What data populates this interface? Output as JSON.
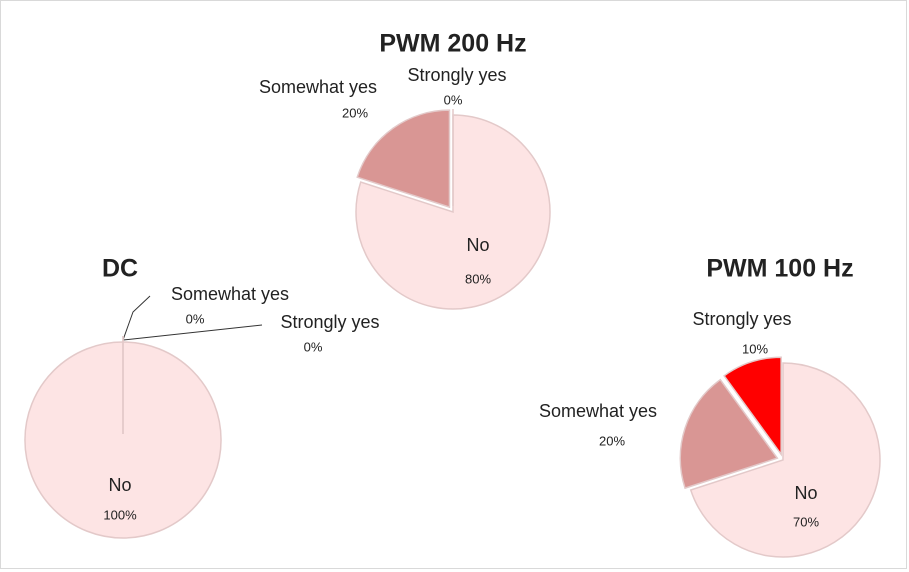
{
  "chart_data": [
    {
      "type": "pie",
      "title": "PWM 200 Hz",
      "categories": [
        "No",
        "Somewhat yes",
        "Strongly yes"
      ],
      "values": [
        80,
        20,
        0
      ],
      "value_labels": [
        "80%",
        "20%",
        "0%"
      ],
      "colors": [
        "#fde4e4",
        "#d99694",
        "#ff0000"
      ]
    },
    {
      "type": "pie",
      "title": "DC",
      "categories": [
        "No",
        "Somewhat yes",
        "Strongly yes"
      ],
      "values": [
        100,
        0,
        0
      ],
      "value_labels": [
        "100%",
        "0%",
        "0%"
      ],
      "colors": [
        "#fde4e4",
        "#d99694",
        "#ff0000"
      ]
    },
    {
      "type": "pie",
      "title": "PWM 100 Hz",
      "categories": [
        "No",
        "Somewhat yes",
        "Strongly yes"
      ],
      "values": [
        70,
        20,
        10
      ],
      "value_labels": [
        "70%",
        "20%",
        "10%"
      ],
      "colors": [
        "#fde4e4",
        "#d99694",
        "#ff0000"
      ]
    }
  ]
}
